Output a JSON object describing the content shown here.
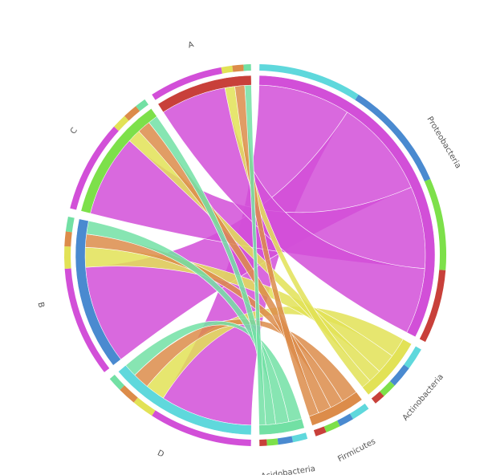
{
  "chart_data": {
    "type": "chord",
    "targets": [
      {
        "name": "Proteobacteria",
        "color": "#d24fd8"
      },
      {
        "name": "Actinobacteria",
        "color": "#e2e256"
      },
      {
        "name": "Firmicutes",
        "color": "#dc8c4a"
      },
      {
        "name": "Acidobacteria",
        "color": "#72e0a4"
      }
    ],
    "sources": [
      {
        "name": "D",
        "color": "#5fd8dc"
      },
      {
        "name": "B",
        "color": "#4a8ad0"
      },
      {
        "name": "C",
        "color": "#7de04a"
      },
      {
        "name": "A",
        "color": "#c8403a"
      }
    ],
    "matrix": [
      [
        28,
        6,
        5,
        4
      ],
      [
        30,
        6,
        4,
        4
      ],
      [
        25,
        4,
        4,
        3
      ],
      [
        20,
        3,
        3,
        2
      ]
    ]
  }
}
